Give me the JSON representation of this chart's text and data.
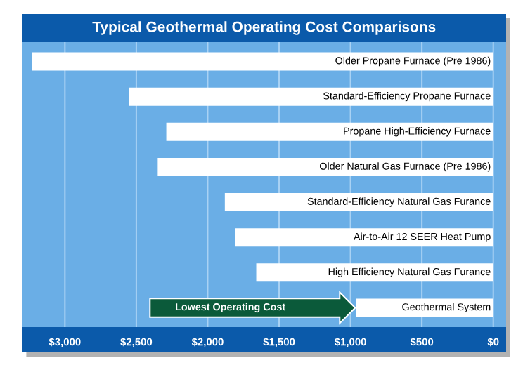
{
  "chart_data": {
    "type": "bar",
    "orientation": "horizontal",
    "title": "Typical Geothermal Operating Cost Comparisons",
    "categories": [
      "Older Propane Furnace (Pre 1986)",
      "Standard-Efficiency Propane Furnace",
      "Propane High-Efficiency Furnace",
      "Older Natural Gas Furnace (Pre 1986)",
      "Standard-Efficiency Natural Gas Furance",
      "Air-to-Air 12 SEER Heat Pump",
      "High Efficiency Natural Gas Furance",
      "Geothermal System"
    ],
    "values": [
      3230,
      2550,
      2290,
      2350,
      1880,
      1810,
      1660,
      960
    ],
    "color": "#ffffff",
    "xlim": [
      3300,
      -90
    ],
    "xticks": [
      {
        "value": 3000,
        "label": "$3,000"
      },
      {
        "value": 2500,
        "label": "$2,500"
      },
      {
        "value": 2000,
        "label": "$2,000"
      },
      {
        "value": 1500,
        "label": "$1,500"
      },
      {
        "value": 1000,
        "label": "$1,000"
      },
      {
        "value": 500,
        "label": "$500"
      },
      {
        "value": 0,
        "label": "$0"
      }
    ],
    "grid": "x",
    "annotations": [
      "Lowest Operating Cost"
    ]
  }
}
